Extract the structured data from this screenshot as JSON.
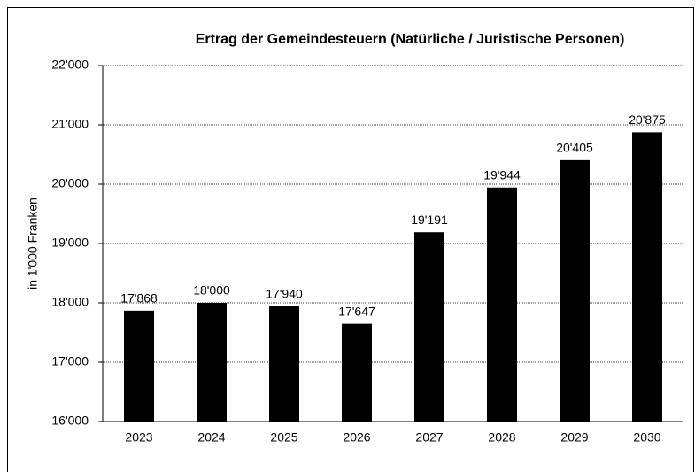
{
  "chart_data": {
    "type": "bar",
    "title": "Ertrag der Gemeindesteuern (Natürliche / Juristische Personen)",
    "ylabel": "in 1'000 Franken",
    "categories": [
      "2023",
      "2024",
      "2025",
      "2026",
      "2027",
      "2028",
      "2029",
      "2030"
    ],
    "values": [
      17868,
      18000,
      17940,
      17647,
      19191,
      19944,
      20405,
      20875
    ],
    "value_labels": [
      "17'868",
      "18'000",
      "17'940",
      "17'647",
      "19'191",
      "19'944",
      "20'405",
      "20'875"
    ],
    "color": "#000000",
    "ylim": [
      16000,
      22000
    ],
    "yticks": [
      {
        "value": 16000,
        "label": "16'000"
      },
      {
        "value": 17000,
        "label": "17'000"
      },
      {
        "value": 18000,
        "label": "18'000"
      },
      {
        "value": 19000,
        "label": "19'000"
      },
      {
        "value": 20000,
        "label": "20'000"
      },
      {
        "value": 21000,
        "label": "21'000"
      },
      {
        "value": 22000,
        "label": "22'000"
      }
    ],
    "grid": true
  }
}
